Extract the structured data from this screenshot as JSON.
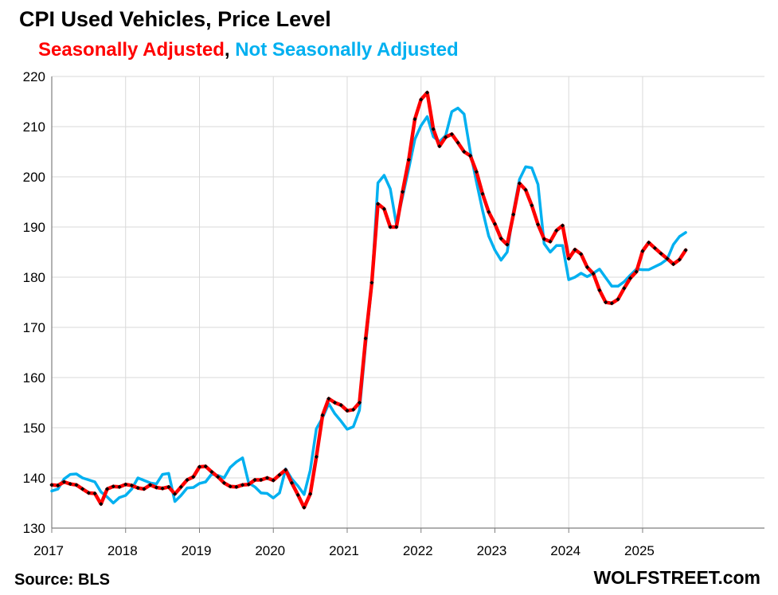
{
  "title": "CPI Used Vehicles, Price Level",
  "subtitle": {
    "part1": "Seasonally Adjusted",
    "sep": ", ",
    "part2": "Not Seasonally Adjusted"
  },
  "source": "Source: BLS",
  "brand": "WOLFSTREET.com",
  "colors": {
    "seasonally_adjusted": "#ff0000",
    "not_seasonally_adjusted": "#00b0f0",
    "markers": "#000000",
    "grid": "#d9d9d9"
  },
  "chart_data": {
    "type": "line",
    "xlabel": "",
    "ylabel": "",
    "grid": true,
    "ylim": [
      130,
      220
    ],
    "yticks": [
      130,
      140,
      150,
      160,
      170,
      180,
      190,
      200,
      210,
      220
    ],
    "xticks": [
      "2017",
      "2018",
      "2019",
      "2020",
      "2021",
      "2022",
      "2023",
      "2024",
      "2025"
    ],
    "x_start": "2017-01",
    "frequency": "monthly",
    "series": [
      {
        "name": "Seasonally Adjusted",
        "color": "#ff0000",
        "markers": true,
        "values": [
          138.6,
          138.5,
          139.2,
          138.8,
          138.6,
          137.8,
          137.0,
          136.9,
          134.8,
          137.8,
          138.3,
          138.2,
          138.7,
          138.5,
          138.0,
          137.8,
          138.6,
          138.1,
          137.9,
          138.2,
          136.8,
          138.2,
          139.6,
          140.2,
          142.2,
          142.3,
          141.2,
          140.2,
          139.0,
          138.3,
          138.2,
          138.6,
          138.7,
          139.6,
          139.6,
          140.0,
          139.5,
          140.6,
          141.6,
          139.0,
          136.6,
          134.1,
          136.8,
          144.2,
          152.5,
          155.8,
          155.0,
          154.5,
          153.4,
          153.6,
          155.0,
          167.8,
          178.9,
          194.6,
          193.6,
          190.0,
          190.0,
          197.0,
          203.4,
          211.5,
          215.4,
          216.8,
          209.5,
          206.1,
          207.9,
          208.5,
          206.8,
          205.0,
          204.2,
          201.0,
          196.6,
          193.0,
          190.6,
          187.7,
          186.5,
          192.5,
          198.7,
          197.4,
          194.3,
          190.5,
          187.6,
          187.1,
          189.3,
          190.3,
          183.7,
          185.5,
          184.6,
          182.0,
          180.7,
          177.4,
          175.0,
          174.8,
          175.6,
          177.8,
          179.8,
          181.1,
          185.2,
          186.9,
          185.8,
          184.7,
          183.7,
          182.6,
          183.5,
          185.4
        ]
      },
      {
        "name": "Not Seasonally Adjusted",
        "color": "#00b0f0",
        "markers": false,
        "values": [
          137.4,
          137.8,
          139.8,
          140.7,
          140.8,
          140.0,
          139.6,
          139.2,
          137.2,
          136.2,
          135.0,
          136.1,
          136.5,
          137.8,
          140.0,
          139.5,
          139.0,
          138.8,
          140.7,
          140.9,
          135.3,
          136.5,
          138.0,
          138.1,
          138.9,
          139.2,
          140.8,
          140.5,
          140.0,
          142.1,
          143.2,
          144.0,
          139.0,
          138.2,
          137.0,
          136.9,
          136.0,
          137.0,
          141.8,
          139.8,
          138.4,
          136.7,
          141.5,
          149.8,
          152.0,
          154.8,
          152.8,
          151.3,
          149.7,
          150.2,
          153.5,
          166.6,
          178.6,
          198.8,
          200.3,
          197.6,
          190.5,
          196.0,
          201.6,
          207.5,
          210.2,
          212.0,
          208.0,
          207.0,
          208.2,
          213.0,
          213.7,
          212.5,
          205.0,
          199.0,
          193.3,
          188.2,
          185.4,
          183.4,
          185.0,
          193.0,
          199.5,
          202.0,
          201.8,
          198.5,
          186.7,
          185.0,
          186.3,
          186.3,
          179.5,
          180.0,
          180.8,
          180.1,
          180.8,
          181.6,
          179.9,
          178.2,
          178.2,
          179.1,
          180.4,
          181.6,
          181.5,
          181.5,
          182.1,
          182.7,
          183.6,
          186.5,
          188.1,
          188.9
        ]
      }
    ]
  }
}
